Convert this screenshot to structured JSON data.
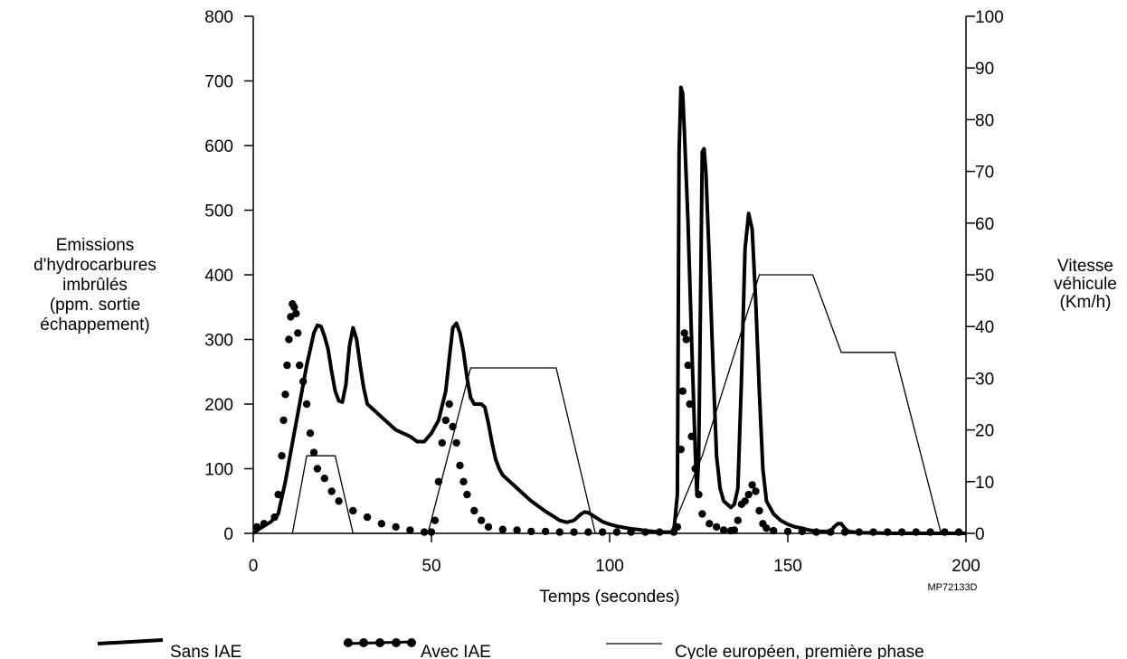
{
  "chart_data": {
    "type": "line",
    "xlabel": "Temps (secondes)",
    "ylabel_left": "Emissions d'hydrocarbures imbrûlés (ppm. sortie échappement)",
    "ylabel_left_lines": [
      "Emissions",
      "d'hydrocarbures",
      "imbrûlés",
      "(ppm. sortie",
      "échappement)"
    ],
    "ylabel_right_lines": [
      "Vitesse",
      "véhicule",
      "(Km/h)"
    ],
    "code": "MP72133D",
    "xlim": [
      0,
      200
    ],
    "ylim_left": [
      0,
      800
    ],
    "ylim_right": [
      0,
      100
    ],
    "x_ticks": [
      0,
      50,
      100,
      150,
      200
    ],
    "y_ticks_left": [
      0,
      100,
      200,
      300,
      400,
      500,
      600,
      700,
      800
    ],
    "y_ticks_right": [
      0,
      10,
      20,
      30,
      40,
      50,
      60,
      70,
      80,
      90,
      100
    ],
    "grid": false,
    "legend_position": "bottom",
    "series": [
      {
        "name": "Sans IAE",
        "axis": "left",
        "style": "thick",
        "color": "#000000",
        "points": [
          [
            0,
            0
          ],
          [
            2,
            8
          ],
          [
            5,
            18
          ],
          [
            7,
            30
          ],
          [
            9,
            80
          ],
          [
            11,
            140
          ],
          [
            13,
            200
          ],
          [
            15,
            260
          ],
          [
            17,
            310
          ],
          [
            18,
            322
          ],
          [
            19,
            320
          ],
          [
            20,
            305
          ],
          [
            21,
            285
          ],
          [
            22,
            250
          ],
          [
            23,
            220
          ],
          [
            24,
            205
          ],
          [
            25,
            203
          ],
          [
            26,
            230
          ],
          [
            27,
            290
          ],
          [
            28,
            318
          ],
          [
            29,
            300
          ],
          [
            30,
            260
          ],
          [
            31,
            225
          ],
          [
            32,
            200
          ],
          [
            34,
            190
          ],
          [
            36,
            180
          ],
          [
            38,
            170
          ],
          [
            40,
            160
          ],
          [
            42,
            155
          ],
          [
            44,
            150
          ],
          [
            46,
            142
          ],
          [
            48,
            142
          ],
          [
            50,
            155
          ],
          [
            52,
            175
          ],
          [
            54,
            220
          ],
          [
            55,
            270
          ],
          [
            56,
            318
          ],
          [
            57,
            325
          ],
          [
            58,
            310
          ],
          [
            59,
            280
          ],
          [
            60,
            240
          ],
          [
            61,
            210
          ],
          [
            62,
            200
          ],
          [
            64,
            200
          ],
          [
            65,
            195
          ],
          [
            66,
            170
          ],
          [
            67,
            140
          ],
          [
            68,
            115
          ],
          [
            69,
            100
          ],
          [
            70,
            90
          ],
          [
            72,
            80
          ],
          [
            74,
            70
          ],
          [
            76,
            60
          ],
          [
            78,
            50
          ],
          [
            80,
            42
          ],
          [
            82,
            34
          ],
          [
            84,
            27
          ],
          [
            86,
            20
          ],
          [
            88,
            17
          ],
          [
            90,
            20
          ],
          [
            92,
            30
          ],
          [
            93,
            33
          ],
          [
            94,
            32
          ],
          [
            96,
            25
          ],
          [
            98,
            18
          ],
          [
            100,
            14
          ],
          [
            102,
            11
          ],
          [
            104,
            9
          ],
          [
            106,
            7
          ],
          [
            108,
            6
          ],
          [
            110,
            4
          ],
          [
            112,
            3
          ],
          [
            115,
            2
          ],
          [
            118,
            2
          ],
          [
            119,
            60
          ],
          [
            119.5,
            590
          ],
          [
            120,
            690
          ],
          [
            120.5,
            680
          ],
          [
            121,
            620
          ],
          [
            122,
            480
          ],
          [
            123,
            300
          ],
          [
            124,
            130
          ],
          [
            124.5,
            60
          ],
          [
            125,
            120
          ],
          [
            126,
            590
          ],
          [
            126.5,
            595
          ],
          [
            127,
            560
          ],
          [
            128,
            420
          ],
          [
            129,
            260
          ],
          [
            130,
            120
          ],
          [
            131,
            70
          ],
          [
            132,
            50
          ],
          [
            134,
            40
          ],
          [
            135,
            45
          ],
          [
            136,
            70
          ],
          [
            137,
            240
          ],
          [
            138,
            440
          ],
          [
            139,
            495
          ],
          [
            140,
            470
          ],
          [
            141,
            360
          ],
          [
            142,
            220
          ],
          [
            143,
            100
          ],
          [
            144,
            50
          ],
          [
            146,
            30
          ],
          [
            148,
            20
          ],
          [
            150,
            14
          ],
          [
            152,
            10
          ],
          [
            154,
            8
          ],
          [
            156,
            5
          ],
          [
            158,
            3
          ],
          [
            160,
            3
          ],
          [
            162,
            3
          ],
          [
            163,
            10
          ],
          [
            164,
            15
          ],
          [
            165,
            15
          ],
          [
            166,
            8
          ],
          [
            167,
            3
          ],
          [
            170,
            1
          ],
          [
            180,
            0
          ],
          [
            190,
            0
          ],
          [
            200,
            0
          ]
        ]
      },
      {
        "name": "Avec IAE",
        "axis": "left",
        "style": "dotted",
        "color": "#000000",
        "points": [
          [
            1,
            10
          ],
          [
            3,
            15
          ],
          [
            6,
            25
          ],
          [
            7,
            60
          ],
          [
            8,
            120
          ],
          [
            8.5,
            175
          ],
          [
            9,
            215
          ],
          [
            9.5,
            260
          ],
          [
            10,
            300
          ],
          [
            10.5,
            335
          ],
          [
            11,
            355
          ],
          [
            11.5,
            350
          ],
          [
            12,
            340
          ],
          [
            12.5,
            310
          ],
          [
            13,
            260
          ],
          [
            14,
            235
          ],
          [
            15,
            200
          ],
          [
            16,
            155
          ],
          [
            17,
            125
          ],
          [
            18,
            100
          ],
          [
            20,
            85
          ],
          [
            22,
            65
          ],
          [
            24,
            50
          ],
          [
            28,
            35
          ],
          [
            32,
            25
          ],
          [
            36,
            15
          ],
          [
            40,
            10
          ],
          [
            44,
            5
          ],
          [
            48,
            2
          ],
          [
            50,
            2
          ],
          [
            51,
            20
          ],
          [
            52,
            80
          ],
          [
            53,
            140
          ],
          [
            54,
            175
          ],
          [
            55,
            200
          ],
          [
            56,
            165
          ],
          [
            57,
            140
          ],
          [
            58,
            105
          ],
          [
            59,
            80
          ],
          [
            60,
            60
          ],
          [
            62,
            35
          ],
          [
            64,
            20
          ],
          [
            66,
            10
          ],
          [
            70,
            6
          ],
          [
            74,
            5
          ],
          [
            78,
            3
          ],
          [
            82,
            3
          ],
          [
            86,
            2
          ],
          [
            90,
            2
          ],
          [
            94,
            2
          ],
          [
            98,
            2
          ],
          [
            102,
            2
          ],
          [
            106,
            2
          ],
          [
            110,
            2
          ],
          [
            114,
            2
          ],
          [
            118,
            2
          ],
          [
            119,
            10
          ],
          [
            120,
            130
          ],
          [
            120.5,
            220
          ],
          [
            121,
            310
          ],
          [
            121.5,
            300
          ],
          [
            122,
            260
          ],
          [
            122.5,
            200
          ],
          [
            123,
            150
          ],
          [
            124,
            100
          ],
          [
            125,
            60
          ],
          [
            126,
            30
          ],
          [
            128,
            15
          ],
          [
            130,
            10
          ],
          [
            132,
            5
          ],
          [
            134,
            4
          ],
          [
            135,
            5
          ],
          [
            136,
            20
          ],
          [
            137,
            45
          ],
          [
            138,
            50
          ],
          [
            139,
            60
          ],
          [
            140,
            75
          ],
          [
            141,
            65
          ],
          [
            142,
            35
          ],
          [
            143,
            15
          ],
          [
            144,
            8
          ],
          [
            146,
            4
          ],
          [
            150,
            3
          ],
          [
            154,
            3
          ],
          [
            158,
            2
          ],
          [
            162,
            2
          ],
          [
            166,
            2
          ],
          [
            170,
            2
          ],
          [
            174,
            2
          ],
          [
            178,
            2
          ],
          [
            182,
            2
          ],
          [
            186,
            2
          ],
          [
            190,
            2
          ],
          [
            194,
            2
          ],
          [
            198,
            2
          ]
        ]
      },
      {
        "name": "Cycle européen, première phase",
        "axis": "right",
        "style": "thin",
        "color": "#000000",
        "points": [
          [
            11,
            0
          ],
          [
            15,
            15
          ],
          [
            23,
            15
          ],
          [
            28,
            0
          ],
          [
            49,
            0
          ],
          [
            61,
            32
          ],
          [
            85,
            32
          ],
          [
            96,
            0
          ],
          [
            117,
            0
          ],
          [
            126,
            15
          ],
          [
            142,
            50
          ],
          [
            157,
            50
          ],
          [
            165,
            35
          ],
          [
            180,
            35
          ],
          [
            193,
            0
          ]
        ]
      }
    ]
  }
}
